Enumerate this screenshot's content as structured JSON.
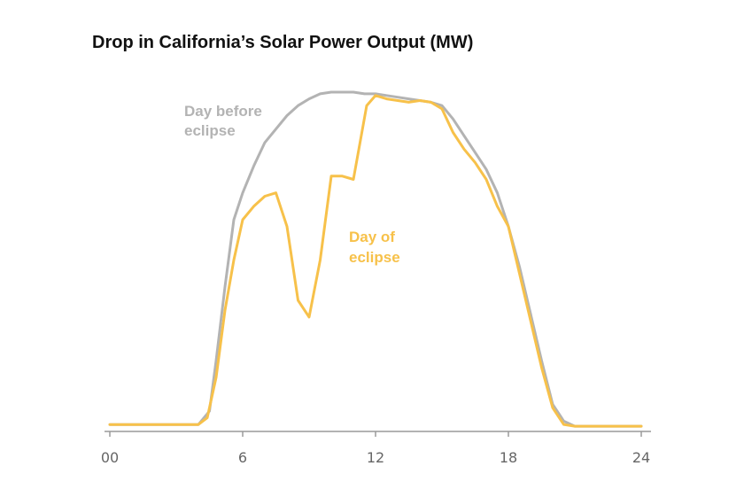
{
  "chart_data": {
    "type": "line",
    "title": "Drop in California’s Solar Power Output (MW)",
    "xlabel": "",
    "ylabel": "",
    "xlim": [
      0,
      24
    ],
    "ylim": [
      0,
      1
    ],
    "x_ticks": [
      "00",
      "6",
      "12",
      "18",
      "24"
    ],
    "x_tick_values": [
      0,
      6,
      12,
      18,
      24
    ],
    "grid": false,
    "series": [
      {
        "name": "Day before eclipse",
        "color": "#b3b3b3",
        "points": [
          [
            0,
            0.01
          ],
          [
            4,
            0.01
          ],
          [
            4.5,
            0.05
          ],
          [
            4.8,
            0.2
          ],
          [
            5.2,
            0.42
          ],
          [
            5.6,
            0.62
          ],
          [
            6,
            0.7
          ],
          [
            6.5,
            0.78
          ],
          [
            7,
            0.85
          ],
          [
            7.5,
            0.89
          ],
          [
            8,
            0.93
          ],
          [
            8.5,
            0.96
          ],
          [
            9,
            0.98
          ],
          [
            9.5,
            0.995
          ],
          [
            10,
            1.0
          ],
          [
            10.5,
            1.0
          ],
          [
            11,
            1.0
          ],
          [
            11.5,
            0.995
          ],
          [
            12,
            0.995
          ],
          [
            12.5,
            0.99
          ],
          [
            13,
            0.985
          ],
          [
            13.5,
            0.98
          ],
          [
            14,
            0.975
          ],
          [
            14.5,
            0.97
          ],
          [
            15,
            0.96
          ],
          [
            15.5,
            0.92
          ],
          [
            16,
            0.87
          ],
          [
            16.5,
            0.82
          ],
          [
            17,
            0.77
          ],
          [
            17.5,
            0.7
          ],
          [
            18,
            0.6
          ],
          [
            18.5,
            0.48
          ],
          [
            19,
            0.34
          ],
          [
            19.5,
            0.2
          ],
          [
            20,
            0.07
          ],
          [
            20.5,
            0.02
          ],
          [
            21,
            0.005
          ],
          [
            24,
            0.005
          ]
        ]
      },
      {
        "name": "Day of eclipse",
        "color": "#f7c14a",
        "points": [
          [
            0,
            0.01
          ],
          [
            4,
            0.01
          ],
          [
            4.4,
            0.03
          ],
          [
            4.8,
            0.15
          ],
          [
            5.2,
            0.35
          ],
          [
            5.6,
            0.5
          ],
          [
            6,
            0.62
          ],
          [
            6.5,
            0.66
          ],
          [
            7,
            0.69
          ],
          [
            7.5,
            0.7
          ],
          [
            8,
            0.6
          ],
          [
            8.5,
            0.38
          ],
          [
            9,
            0.33
          ],
          [
            9.5,
            0.5
          ],
          [
            10,
            0.75
          ],
          [
            10.5,
            0.75
          ],
          [
            11,
            0.74
          ],
          [
            11.3,
            0.85
          ],
          [
            11.6,
            0.96
          ],
          [
            12,
            0.99
          ],
          [
            12.5,
            0.98
          ],
          [
            13,
            0.975
          ],
          [
            13.5,
            0.97
          ],
          [
            14,
            0.975
          ],
          [
            14.5,
            0.97
          ],
          [
            15,
            0.95
          ],
          [
            15.5,
            0.88
          ],
          [
            16,
            0.83
          ],
          [
            16.5,
            0.79
          ],
          [
            17,
            0.74
          ],
          [
            17.5,
            0.66
          ],
          [
            18,
            0.6
          ],
          [
            18.5,
            0.46
          ],
          [
            19,
            0.32
          ],
          [
            19.5,
            0.18
          ],
          [
            20,
            0.06
          ],
          [
            20.5,
            0.01
          ],
          [
            21,
            0.005
          ],
          [
            24,
            0.005
          ]
        ]
      }
    ],
    "annotations": [
      {
        "series": "Day before eclipse",
        "lines": [
          "Day before",
          "eclipse"
        ],
        "color": "#b3b3b3"
      },
      {
        "series": "Day of eclipse",
        "lines": [
          "Day of",
          "eclipse"
        ],
        "color": "#f7c14a"
      }
    ]
  }
}
